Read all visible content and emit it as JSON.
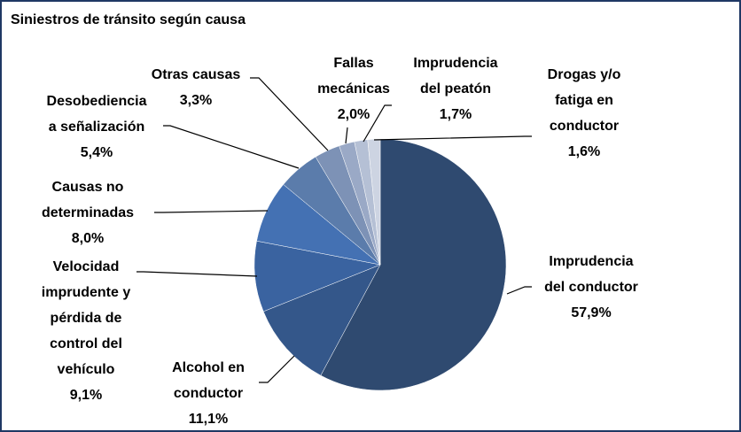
{
  "chart_data": {
    "type": "pie",
    "title": "Siniestros de tránsito según causa",
    "categories": [
      "Imprudencia\ndel conductor",
      "Alcohol en\nconductor",
      "Velocidad\nimprudente y\npérdida de\ncontrol del\nvehículo",
      "Causas no\ndeterminadas",
      "Desobediencia\na señalización",
      "Otras causas",
      "Fallas\nmecánicas",
      "Imprudencia\ndel peatón",
      "Drogas y/o\nfatiga en\nconductor"
    ],
    "values": [
      57.9,
      11.1,
      9.1,
      8.0,
      5.4,
      3.3,
      2.0,
      1.7,
      1.6
    ],
    "value_labels": [
      "57,9%",
      "11,1%",
      "9,1%",
      "8,0%",
      "5,4%",
      "3,3%",
      "2,0%",
      "1,7%",
      "1,6%"
    ],
    "colors": [
      "#2f4a70",
      "#34578a",
      "#3a63a0",
      "#4471b3",
      "#5b7cab",
      "#7d92b6",
      "#9aa9c6",
      "#b5c0d5",
      "#cdd4e2"
    ]
  }
}
